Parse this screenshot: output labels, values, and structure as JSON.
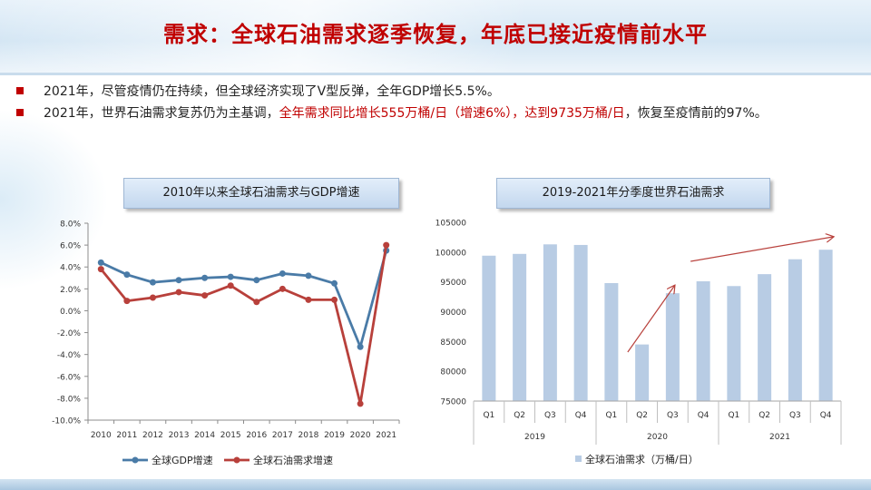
{
  "title": "需求：全球石油需求逐季恢复，年底已接近疫情前水平",
  "bullets": [
    {
      "text": "2021年，尽管疫情仍在持续，但全球经济实现了V型反弹，全年GDP增长5.5%。"
    },
    {
      "pre": "2021年，世界石油需求复苏仍为主基调，",
      "highlight": "全年需求同比增长555万桶/日（增速6%），达到9735万桶/日",
      "post": "，恢复至疫情前的97%。"
    }
  ],
  "chart_data": [
    {
      "type": "line",
      "caption": "2010年以来全球石油需求与GDP增速",
      "x": [
        "2010",
        "2011",
        "2012",
        "2013",
        "2014",
        "2015",
        "2016",
        "2017",
        "2018",
        "2019",
        "2020",
        "2021"
      ],
      "series": [
        {
          "name": "全球GDP增速",
          "color": "#4a7ba7",
          "values": [
            4.4,
            3.3,
            2.6,
            2.8,
            3.0,
            3.1,
            2.8,
            3.4,
            3.2,
            2.5,
            -3.3,
            5.5
          ]
        },
        {
          "name": "全球石油需求增速",
          "color": "#b8403b",
          "values": [
            3.8,
            0.9,
            1.2,
            1.7,
            1.4,
            2.3,
            0.8,
            2.0,
            1.0,
            1.0,
            -8.5,
            6.0
          ]
        }
      ],
      "ylim": [
        -10,
        8
      ],
      "yticks": [
        "8.0%",
        "6.0%",
        "4.0%",
        "2.0%",
        "0.0%",
        "-2.0%",
        "-4.0%",
        "-6.0%",
        "-8.0%",
        "-10.0%"
      ],
      "grid": false,
      "legend": "bottom"
    },
    {
      "type": "bar",
      "caption": "2019-2021年分季度世界石油需求",
      "quarters": [
        "Q1",
        "Q2",
        "Q3",
        "Q4",
        "Q1",
        "Q2",
        "Q3",
        "Q4",
        "Q1",
        "Q2",
        "Q3",
        "Q4"
      ],
      "years": [
        "2019",
        "2020",
        "2021"
      ],
      "series": [
        {
          "name": "全球石油需求（万桶/日）",
          "color": "#b8cce4",
          "values": [
            99400,
            99700,
            101300,
            101200,
            94800,
            84500,
            93100,
            95100,
            94300,
            96300,
            98800,
            100400
          ]
        }
      ],
      "ylim": [
        75000,
        105000
      ],
      "yticks": [
        "105000",
        "100000",
        "95000",
        "90000",
        "85000",
        "80000",
        "75000"
      ],
      "grid": false,
      "legend": "bottom",
      "arrow_color": "#b8403b"
    }
  ]
}
